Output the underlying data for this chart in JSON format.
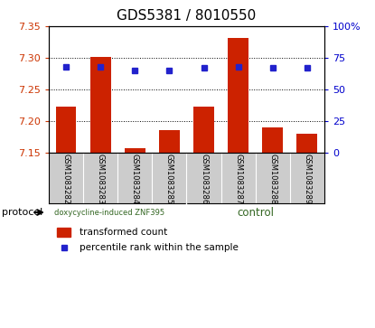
{
  "title": "GDS5381 / 8010550",
  "samples": [
    "GSM1083282",
    "GSM1083283",
    "GSM1083284",
    "GSM1083285",
    "GSM1083286",
    "GSM1083287",
    "GSM1083288",
    "GSM1083289"
  ],
  "transformed_counts": [
    7.222,
    7.302,
    7.157,
    7.185,
    7.222,
    7.332,
    7.19,
    7.18
  ],
  "percentile_ranks": [
    68,
    68,
    65,
    65,
    67,
    68,
    67,
    67
  ],
  "groups": [
    "doxycycline-induced ZNF395",
    "doxycycline-induced ZNF395",
    "doxycycline-induced ZNF395",
    "doxycycline-induced ZNF395",
    "control",
    "control",
    "control",
    "control"
  ],
  "group_split": 4,
  "ylim": [
    7.15,
    7.35
  ],
  "yticks": [
    7.15,
    7.2,
    7.25,
    7.3,
    7.35
  ],
  "y2lim": [
    0,
    100
  ],
  "y2ticks": [
    0,
    25,
    50,
    75,
    100
  ],
  "y2ticklabels": [
    "0",
    "25",
    "50",
    "75",
    "100%"
  ],
  "bar_color": "#cc2200",
  "dot_color": "#2222cc",
  "bar_bottom": 7.15,
  "group1_label": "doxycycline-induced ZNF395",
  "group2_label": "control",
  "group_color": "#66dd55",
  "label_color_left": "#cc3300",
  "label_color_right": "#0000cc",
  "xtick_bg": "#cccccc",
  "protocol_label": "protocol",
  "legend_bar_label": "transformed count",
  "legend_dot_label": "percentile rank within the sample"
}
